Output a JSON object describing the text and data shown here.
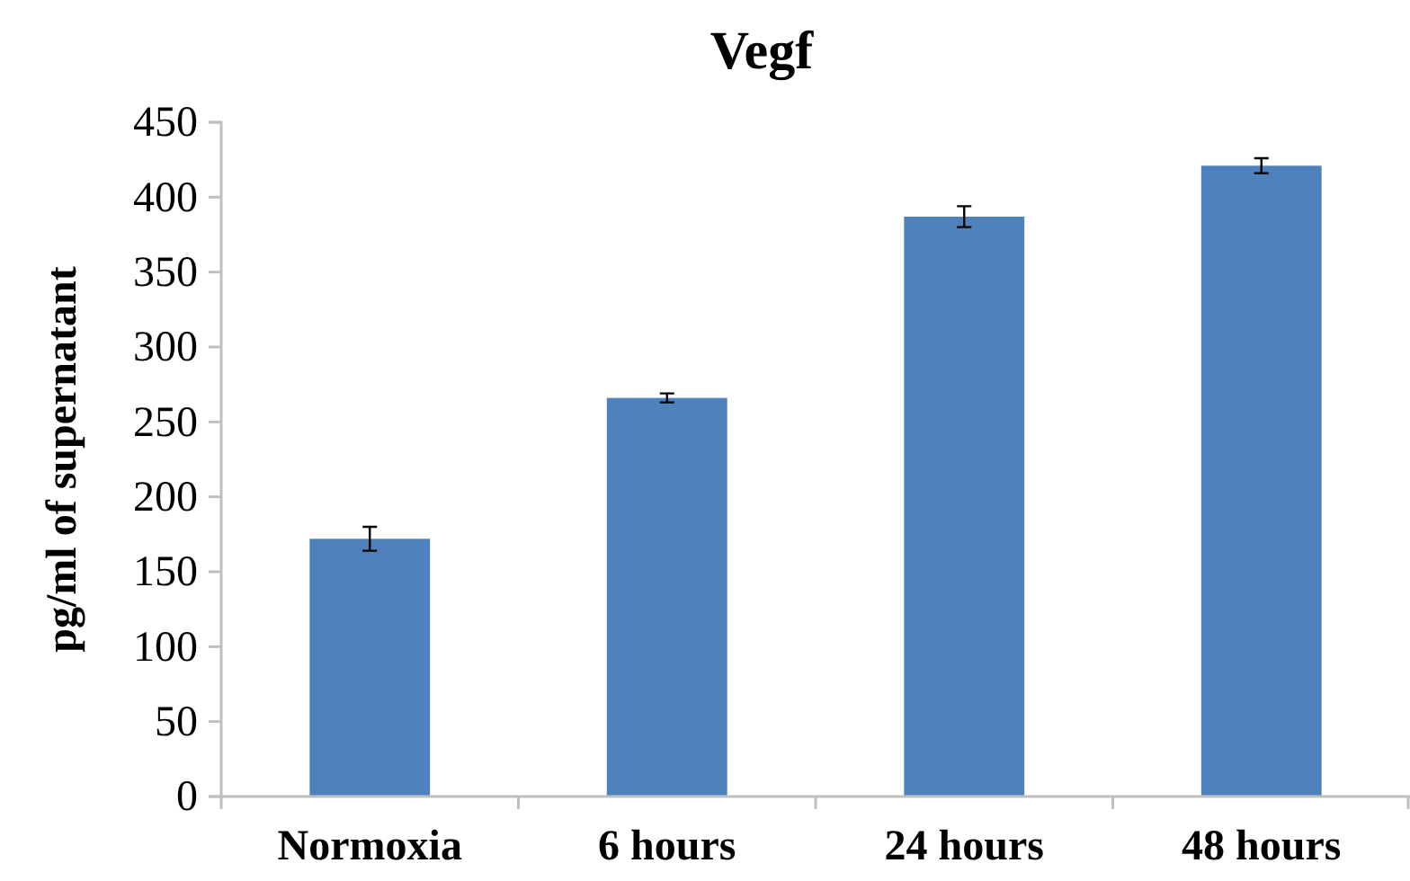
{
  "chart_data": {
    "type": "bar",
    "title": "Vegf",
    "ylabel": "pg/ml of supernatant",
    "categories": [
      "Normoxia",
      "6 hours",
      "24 hours",
      "48 hours"
    ],
    "values": [
      172,
      266,
      387,
      421
    ],
    "errors": [
      8,
      3,
      7,
      5
    ],
    "color": "#4f81bd",
    "ylim": [
      0,
      450
    ],
    "yticks": [
      0,
      50,
      100,
      150,
      200,
      250,
      300,
      350,
      400,
      450
    ],
    "grid": false
  }
}
